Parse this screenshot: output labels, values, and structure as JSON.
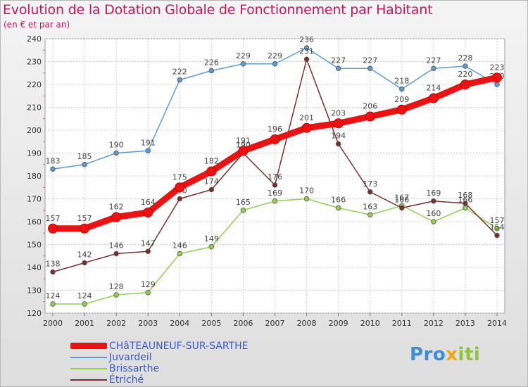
{
  "header": {
    "title": "Evolution de la Dotation Globale de Fonctionnement par Habitant",
    "subtitle": "(en € et par an)"
  },
  "brand": {
    "part1": "Pro",
    "part2": "x",
    "part3": "iti"
  },
  "chart_data": {
    "type": "line",
    "title": "Evolution de la Dotation Globale de Fonctionnement par Habitant",
    "ylabel": "(en € et par an)",
    "xlabel": "",
    "x": [
      "2000",
      "2001",
      "2002",
      "2003",
      "2004",
      "2005",
      "2006",
      "2007",
      "2008",
      "2009",
      "2010",
      "2011",
      "2012",
      "2013",
      "2014"
    ],
    "ylim": [
      120,
      240
    ],
    "yticks": [
      120,
      130,
      140,
      150,
      160,
      170,
      180,
      190,
      200,
      210,
      220,
      230,
      240
    ],
    "grid": true,
    "legend_position": "bottom-left",
    "series": [
      {
        "name": "CHâTEAUNEUF-SUR-SARTHE",
        "color": "#ee1111",
        "emphasis": true,
        "values": [
          157,
          157,
          162,
          164,
          175,
          182,
          191,
          196,
          201,
          203,
          206,
          209,
          214,
          220,
          223
        ],
        "labels": [
          "157",
          "157",
          "162",
          "164",
          "175",
          "182",
          "191",
          "196",
          "201",
          "203",
          "206",
          "209",
          "214",
          "220",
          "223"
        ]
      },
      {
        "name": "Juvardeil",
        "color": "#5b9bd5",
        "emphasis": false,
        "values": [
          183,
          185,
          190,
          191,
          222,
          226,
          229,
          229,
          236,
          227,
          227,
          218,
          227,
          228,
          220
        ],
        "labels": [
          "183",
          "185",
          "190",
          "191",
          "222",
          "226",
          "229",
          "229",
          "236",
          "227",
          "227",
          "218",
          "227",
          "228",
          "220"
        ]
      },
      {
        "name": "Brissarthe",
        "color": "#92d050",
        "emphasis": false,
        "values": [
          124,
          124,
          128,
          129,
          146,
          149,
          165,
          169,
          170,
          166,
          163,
          167,
          160,
          166,
          157
        ],
        "labels": [
          "124",
          "124",
          "128",
          "129",
          "146",
          "149",
          "165",
          "169",
          "170",
          "166",
          "163",
          "167",
          "160",
          "166",
          "157"
        ]
      },
      {
        "name": "Étriché",
        "color": "#7b2c2c",
        "emphasis": false,
        "values": [
          138,
          142,
          146,
          147,
          170,
          174,
          190,
          176,
          231,
          194,
          173,
          166,
          169,
          168,
          154
        ],
        "labels": [
          "138",
          "142",
          "146",
          "147",
          "170",
          "174",
          "190",
          "176",
          "231",
          "194",
          "173",
          "166",
          "169",
          "168",
          "154"
        ]
      }
    ]
  }
}
